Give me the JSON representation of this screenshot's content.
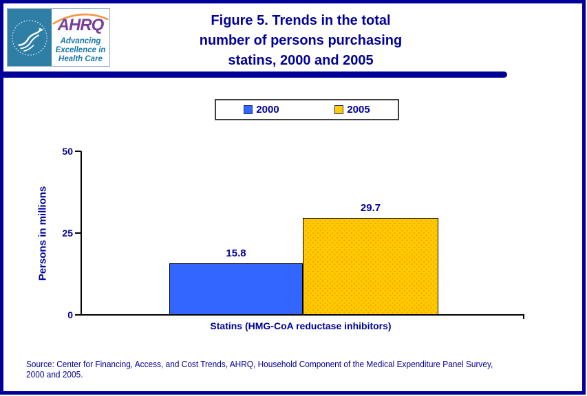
{
  "page": {
    "border_color": "#000099",
    "background": "#FFFFFF",
    "accent_navy": "#000099"
  },
  "header": {
    "logo": {
      "ahrq_acronym": "AHRQ",
      "tagline": "Advancing Excellence in Health Care"
    },
    "title_lines": [
      "Figure 5. Trends in the total",
      "number of persons purchasing",
      "statins, 2000 and 2005"
    ]
  },
  "legend": {
    "items": [
      {
        "label": "2000",
        "color": "#3366FF"
      },
      {
        "label": "2005",
        "color": "#FFCC00"
      }
    ]
  },
  "chart_data": {
    "type": "bar",
    "title": "Figure 5. Trends in the total number of persons purchasing statins, 2000 and 2005",
    "categories": [
      "Statins (HMG-CoA reductase inhibitors)"
    ],
    "series": [
      {
        "name": "2000",
        "values": [
          15.8
        ],
        "color": "#3366FF"
      },
      {
        "name": "2005",
        "values": [
          29.7
        ],
        "color": "#FFCC00",
        "pattern": "orange-dots",
        "dot_color": "#FF9900"
      }
    ],
    "data_labels": [
      "15.8",
      "29.7"
    ],
    "xlabel": "Statins (HMG-CoA reductase inhibitors)",
    "ylabel": "Persons in millions",
    "ylim": [
      0,
      50
    ],
    "yticks": [
      0,
      25,
      50
    ],
    "grid": false,
    "legend_position": "top"
  },
  "axis": {
    "ytick_labels": [
      "50",
      "25",
      "0"
    ]
  },
  "footer": {
    "source_lines": [
      "Source: Center for Financing, Access, and Cost Trends, AHRQ, Household Component of the Medical Expenditure Panel Survey,",
      "2000 and 2005."
    ]
  }
}
